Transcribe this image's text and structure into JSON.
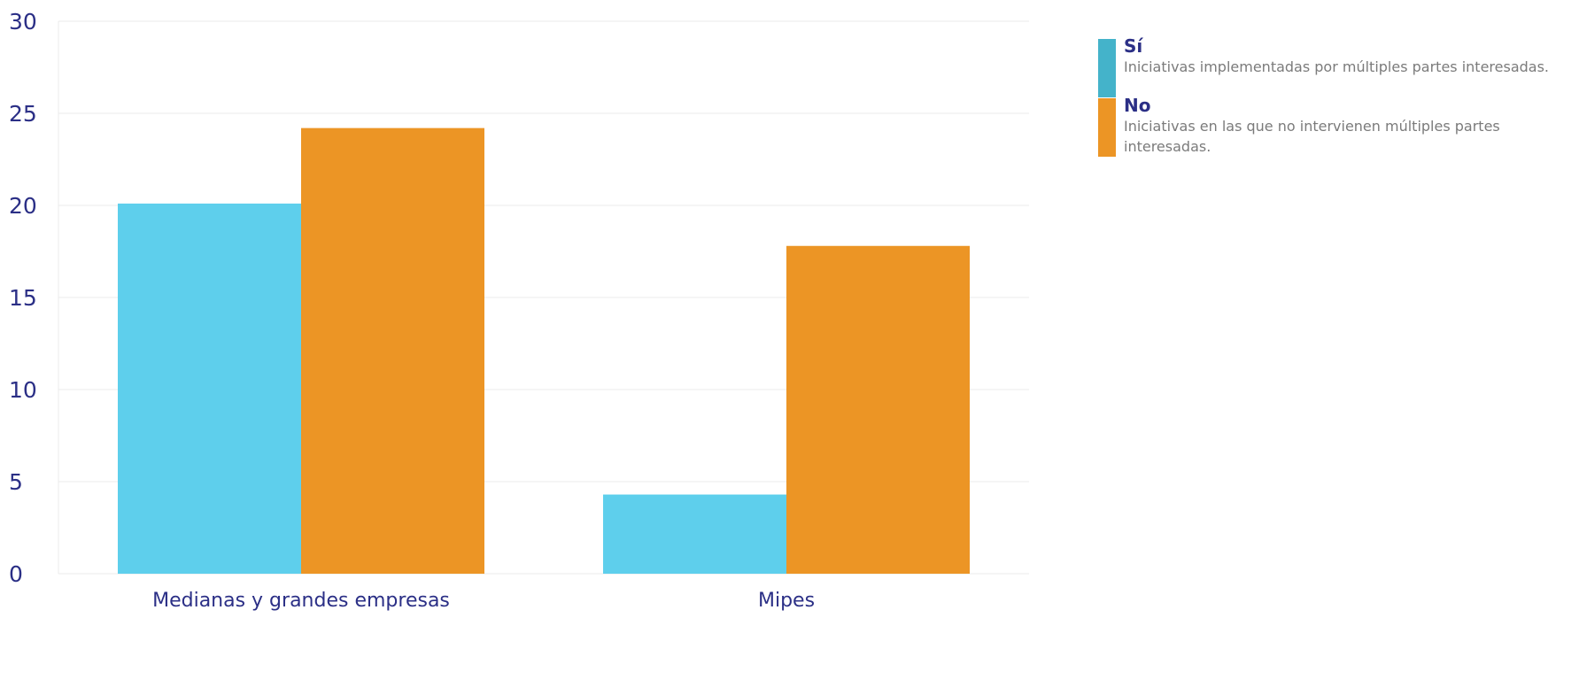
{
  "chart_data": {
    "type": "bar",
    "categories": [
      "Medianas y grandes empresas",
      "Mipes"
    ],
    "series": [
      {
        "name": "Sí",
        "description": "Iniciativas implementadas por múltiples partes interesadas.",
        "color": "#5ecfec",
        "values": [
          20.1,
          4.3
        ]
      },
      {
        "name": "No",
        "description": "Iniciativas en las que no intervienen múltiples partes interesadas.",
        "color": "#ec9525",
        "values": [
          24.2,
          17.8
        ]
      }
    ],
    "ylim": [
      0,
      30
    ],
    "yticks": [
      0,
      5,
      10,
      15,
      20,
      25,
      30
    ],
    "grid": true,
    "legend_position": "right",
    "legend_swatch_colors": [
      "#44b3ca",
      "#ec9525"
    ]
  }
}
